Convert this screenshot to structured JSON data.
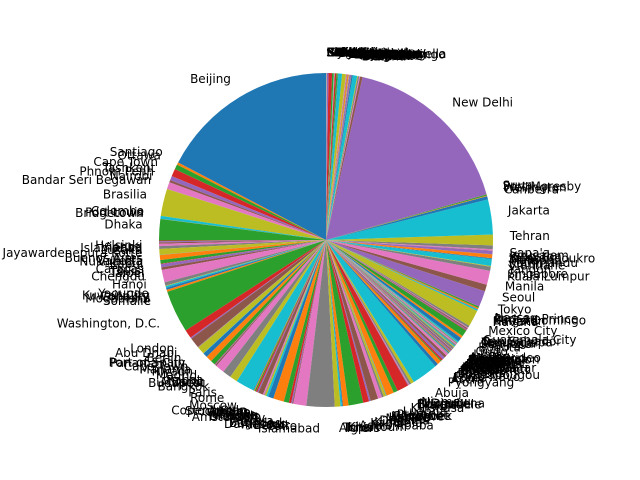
{
  "chart_data": {
    "type": "pie",
    "title": "",
    "start_angle_deg": 90,
    "direction": "counterclockwise",
    "slices": [
      {
        "label": "Beijing",
        "value": 1400
      },
      {
        "label": "Santiago",
        "value": 19
      },
      {
        "label": "Ottawa",
        "value": 38
      },
      {
        "label": "Cape Town",
        "value": 59
      },
      {
        "label": "Tashkent",
        "value": 34
      },
      {
        "label": "Phnom Penh",
        "value": 17
      },
      {
        "label": "Nairobi",
        "value": 54
      },
      {
        "label": "Bandar Seri Begawan",
        "value": 1
      },
      {
        "label": "Brasilia",
        "value": 213
      },
      {
        "label": "Colombo",
        "value": 22
      },
      {
        "label": "Port Louis",
        "value": 1
      },
      {
        "label": "Bridgetown",
        "value": 1
      },
      {
        "label": "Dhaka",
        "value": 166
      },
      {
        "label": "Helsinki",
        "value": 6
      },
      {
        "label": "Vienna",
        "value": 9
      },
      {
        "label": "Islamabad",
        "value": 10
      },
      {
        "label": "Lusaka",
        "value": 19
      },
      {
        "label": "Sri Jayawardenepura Kotte",
        "value": 22
      },
      {
        "label": "Buenos Aires",
        "value": 45
      },
      {
        "label": "Valletta",
        "value": 1
      },
      {
        "label": "Nuku'alofa",
        "value": 1
      },
      {
        "label": "Kabul",
        "value": 39
      },
      {
        "label": "Caracas",
        "value": 28
      },
      {
        "label": "Tbilisi",
        "value": 4
      },
      {
        "label": "Taipei",
        "value": 24
      },
      {
        "label": "Chengdu",
        "value": 21
      },
      {
        "label": "Hanoi",
        "value": 98
      },
      {
        "label": "Yaounde",
        "value": 27
      },
      {
        "label": "Kuwait City",
        "value": 4
      },
      {
        "label": "Conakry",
        "value": 13
      },
      {
        "label": "Mogadishu",
        "value": 16
      },
      {
        "label": "Somalie",
        "value": 16
      },
      {
        "label": "Washington, D.C.",
        "value": 330
      },
      {
        "label": "London",
        "value": 67
      },
      {
        "label": "Abu Dhabi",
        "value": 10
      },
      {
        "label": "Berlin",
        "value": 83
      },
      {
        "label": "Port of Spain",
        "value": 1
      },
      {
        "label": "Panama City",
        "value": 4
      },
      {
        "label": "Cape Town",
        "value": 59
      },
      {
        "label": "Manama",
        "value": 2
      },
      {
        "label": "Riyadh",
        "value": 35
      },
      {
        "label": "Madrid",
        "value": 47
      },
      {
        "label": "Rabat",
        "value": 37
      },
      {
        "label": "Doha",
        "value": 3
      },
      {
        "label": "Muscat",
        "value": 5
      },
      {
        "label": "Budapest",
        "value": 10
      },
      {
        "label": "Bangkok",
        "value": 70
      },
      {
        "label": "Paris",
        "value": 67
      },
      {
        "label": "Rome",
        "value": 60
      },
      {
        "label": "Moscow",
        "value": 146
      },
      {
        "label": "Oslo",
        "value": 5
      },
      {
        "label": "Copenhagen",
        "value": 6
      },
      {
        "label": "Stockholm",
        "value": 10
      },
      {
        "label": "Athens",
        "value": 11
      },
      {
        "label": "Lisbon",
        "value": 10
      },
      {
        "label": "Warsaw",
        "value": 38
      },
      {
        "label": "Prague",
        "value": 11
      },
      {
        "label": "Dublin",
        "value": 5
      },
      {
        "label": "Brussels",
        "value": 12
      },
      {
        "label": "Amsterdam",
        "value": 17
      },
      {
        "label": "Kyiv",
        "value": 41
      },
      {
        "label": "Ankara",
        "value": 84
      },
      {
        "label": "Baghdad",
        "value": 40
      },
      {
        "label": "Damascus",
        "value": 18
      },
      {
        "label": "Amman",
        "value": 10
      },
      {
        "label": "Beirut",
        "value": 7
      },
      {
        "label": "Cairo",
        "value": 102
      },
      {
        "label": "Islamabad",
        "value": 220
      },
      {
        "label": "Algiers",
        "value": 44
      },
      {
        "label": "Tunis",
        "value": 12
      },
      {
        "label": "Tripoli",
        "value": 7
      },
      {
        "label": "Khartoum",
        "value": 44
      },
      {
        "label": "Addis Ababa",
        "value": 115
      },
      {
        "label": "Kampala",
        "value": 46
      },
      {
        "label": "Kigali",
        "value": 13
      },
      {
        "label": "Dodoma",
        "value": 60
      },
      {
        "label": "Maputo",
        "value": 31
      },
      {
        "label": "Harare",
        "value": 15
      },
      {
        "label": "Lilongwe",
        "value": 19
      },
      {
        "label": "Gaborone",
        "value": 2
      },
      {
        "label": "Windhoek",
        "value": 3
      },
      {
        "label": "Pretoria",
        "value": 59
      },
      {
        "label": "Luanda",
        "value": 33
      },
      {
        "label": "Kinshasa",
        "value": 90
      },
      {
        "label": "Brazzaville",
        "value": 5
      },
      {
        "label": "Libreville",
        "value": 2
      },
      {
        "label": "Bangui",
        "value": 5
      },
      {
        "label": "N'Djamena",
        "value": 16
      },
      {
        "label": "Niamey",
        "value": 24
      },
      {
        "label": "Abuja",
        "value": 206
      },
      {
        "label": "Pyongyang",
        "value": 26
      },
      {
        "label": "Accra",
        "value": 31
      },
      {
        "label": "Lome",
        "value": 8
      },
      {
        "label": "Porto-Novo",
        "value": 12
      },
      {
        "label": "Ouagadougou",
        "value": 21
      },
      {
        "label": "Bamako",
        "value": 20
      },
      {
        "label": "Dakar",
        "value": 17
      },
      {
        "label": "Nouakchott",
        "value": 5
      },
      {
        "label": "Banjul",
        "value": 2
      },
      {
        "label": "Bissau",
        "value": 2
      },
      {
        "label": "Freetown",
        "value": 8
      },
      {
        "label": "Monrovia",
        "value": 5
      },
      {
        "label": "Ulaanbaatar",
        "value": 3
      },
      {
        "label": "Yerevan",
        "value": 3
      },
      {
        "label": "Baku",
        "value": 10
      },
      {
        "label": "Minsk",
        "value": 9
      },
      {
        "label": "Chisinau",
        "value": 3
      },
      {
        "label": "Bucharest",
        "value": 19
      },
      {
        "label": "Sofia",
        "value": 7
      },
      {
        "label": "Belgrade",
        "value": 7
      },
      {
        "label": "Zagreb",
        "value": 4
      },
      {
        "label": "Ljubljana",
        "value": 2
      },
      {
        "label": "Sarajevo",
        "value": 3
      },
      {
        "label": "Skopje",
        "value": 2
      },
      {
        "label": "Tirana",
        "value": 3
      },
      {
        "label": "Podgorica",
        "value": 1
      },
      {
        "label": "Concepcion",
        "value": 7
      },
      {
        "label": "Asuncion",
        "value": 7
      },
      {
        "label": "Montevideo",
        "value": 3
      },
      {
        "label": "La Paz",
        "value": 12
      },
      {
        "label": "Lima",
        "value": 33
      },
      {
        "label": "Quito",
        "value": 18
      },
      {
        "label": "Bogota",
        "value": 51
      },
      {
        "label": "San Jose",
        "value": 5
      },
      {
        "label": "Managua",
        "value": 7
      },
      {
        "label": "Tegucigalpa",
        "value": 10
      },
      {
        "label": "San Salvador",
        "value": 6
      },
      {
        "label": "Guatemala City",
        "value": 17
      },
      {
        "label": "Mexico City",
        "value": 129
      },
      {
        "label": "Havana",
        "value": 11
      },
      {
        "label": "Kingston",
        "value": 3
      },
      {
        "label": "Santo Domingo",
        "value": 11
      },
      {
        "label": "Port-au-Prince",
        "value": 11
      },
      {
        "label": "Nassau",
        "value": 1
      },
      {
        "label": "Tokyo",
        "value": 126
      },
      {
        "label": "Seoul",
        "value": 52
      },
      {
        "label": "Manila",
        "value": 110
      },
      {
        "label": "Kuala Lumpur",
        "value": 32
      },
      {
        "label": "Singapore",
        "value": 6
      },
      {
        "label": "Yangon",
        "value": 54
      },
      {
        "label": "Vientiane",
        "value": 7
      },
      {
        "label": "Kathmandu",
        "value": 29
      },
      {
        "label": "Thimphu",
        "value": 1
      },
      {
        "label": "Male",
        "value": 1
      },
      {
        "label": "Yamoussoukro",
        "value": 26
      },
      {
        "label": "Kingston",
        "value": 3
      },
      {
        "label": "Jerusalem",
        "value": 9
      },
      {
        "label": "Sana'a",
        "value": 30
      },
      {
        "label": "Tehran",
        "value": 84
      },
      {
        "label": "Jakarta",
        "value": 274
      },
      {
        "label": "Canberra",
        "value": 26
      },
      {
        "label": "Wellington",
        "value": 5
      },
      {
        "label": "Port Moresby",
        "value": 9
      },
      {
        "label": "Suva",
        "value": 1
      },
      {
        "label": "New Delhi",
        "value": 1380
      },
      {
        "label": "Astana",
        "value": 19
      },
      {
        "label": "Bishkek",
        "value": 7
      },
      {
        "label": "Dushanbe",
        "value": 10
      },
      {
        "label": "Ashgabat",
        "value": 6
      },
      {
        "label": "Tashkent",
        "value": 34
      },
      {
        "label": "Baku",
        "value": 10
      },
      {
        "label": "Georgetown",
        "value": 1
      },
      {
        "label": "Paramaribo",
        "value": 1
      },
      {
        "label": "Cayenne",
        "value": 1
      },
      {
        "label": "Santo Domingo",
        "value": 11
      },
      {
        "label": "San Juan",
        "value": 3
      },
      {
        "label": "San Marino",
        "value": 1
      },
      {
        "label": "Andorra la Vella",
        "value": 1
      },
      {
        "label": "Monaco",
        "value": 1
      },
      {
        "label": "Vaduz",
        "value": 1
      },
      {
        "label": "Luxembourg",
        "value": 1
      },
      {
        "label": "Bern",
        "value": 9
      },
      {
        "label": "Reykjavik",
        "value": 1
      },
      {
        "label": "Tallinn",
        "value": 1
      },
      {
        "label": "Riga",
        "value": 2
      },
      {
        "label": "Vilnius",
        "value": 3
      },
      {
        "label": "Bratislava",
        "value": 5
      },
      {
        "label": "Nicosia",
        "value": 1
      },
      {
        "label": "Addis Ababa",
        "value": 30
      },
      {
        "label": "Antananarivo",
        "value": 28
      },
      {
        "label": "Asmara",
        "value": 4
      },
      {
        "label": "Djibouti",
        "value": 1
      },
      {
        "label": "Juba",
        "value": 11
      },
      {
        "label": "Gitega",
        "value": 12
      },
      {
        "label": "Moroni",
        "value": 1
      },
      {
        "label": "Victoria",
        "value": 1
      },
      {
        "label": "Praia",
        "value": 1
      },
      {
        "label": "Sao Tome",
        "value": 1
      },
      {
        "label": "Malabo",
        "value": 1
      },
      {
        "label": "Maseru",
        "value": 2
      },
      {
        "label": "Mbabane",
        "value": 1
      },
      {
        "label": "Lobamba",
        "value": 1
      },
      {
        "label": "Cotonou",
        "value": 12
      },
      {
        "label": "Caracas",
        "value": 28
      },
      {
        "label": "Sucre",
        "value": 12
      },
      {
        "label": "Belmopan",
        "value": 1
      },
      {
        "label": "Saint George's",
        "value": 1
      },
      {
        "label": "Castries",
        "value": 1
      },
      {
        "label": "Kingstown",
        "value": 1
      },
      {
        "label": "Basseterre",
        "value": 1
      },
      {
        "label": "Roseau",
        "value": 1
      },
      {
        "label": "Saint John's",
        "value": 1
      }
    ]
  }
}
